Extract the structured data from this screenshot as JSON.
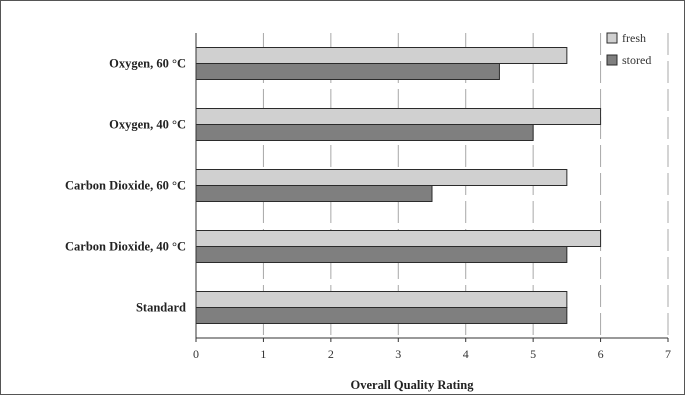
{
  "chart_data": {
    "type": "bar",
    "orientation": "horizontal",
    "categories": [
      "Oxygen, 60 °C",
      "Oxygen, 40 °C",
      "Carbon Dioxide, 60 °C",
      "Carbon Dioxide, 40 °C",
      "Standard"
    ],
    "series": [
      {
        "name": "fresh",
        "values": [
          5.5,
          6,
          5.5,
          6,
          5.5
        ],
        "color": "#d0d0d0"
      },
      {
        "name": "stored",
        "values": [
          4.5,
          5,
          3.5,
          5.5,
          5.5
        ],
        "color": "#7f7f7f"
      }
    ],
    "xlabel": "Overall Quality Rating",
    "ylabel": "",
    "xlim": [
      0,
      7
    ],
    "xticks": [
      0,
      1,
      2,
      3,
      4,
      5,
      6,
      7
    ],
    "grid": "vertical dashed",
    "legend_position": "top-right"
  }
}
